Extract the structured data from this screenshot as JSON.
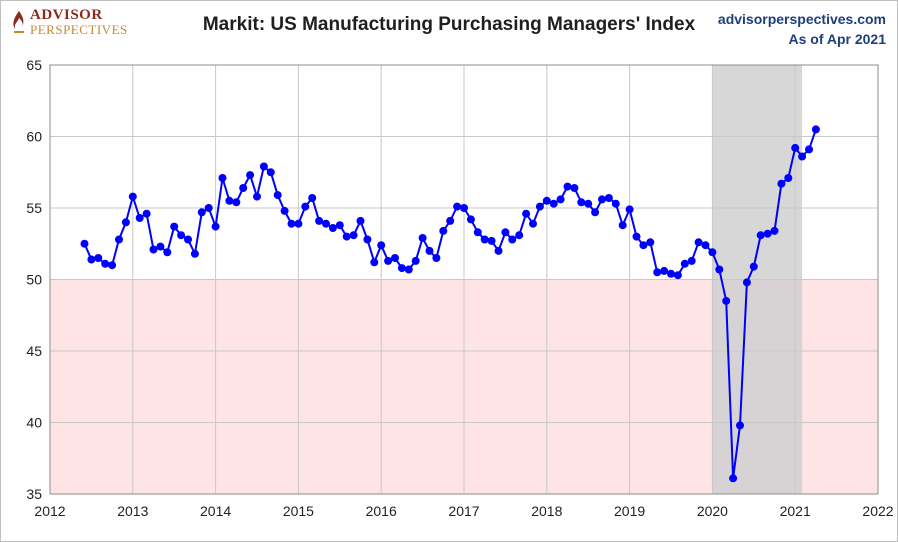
{
  "header": {
    "logo_top": "ADVISOR",
    "logo_bottom": "PERSPECTIVES",
    "title": "Markit: US Manufacturing Purchasing Managers' Index",
    "source_url": "advisorperspectives.com",
    "as_of": "As of Apr 2021"
  },
  "colors": {
    "series": "#0000ff",
    "recession_band": "#d0d0d0",
    "contraction_zone": "#ffe4e6",
    "grid": "#c8c8c8"
  },
  "chart_data": {
    "type": "line",
    "title": "Markit: US Manufacturing Purchasing Managers' Index",
    "xlabel": "",
    "ylabel": "",
    "xlim": [
      2012,
      2022
    ],
    "ylim": [
      35,
      65
    ],
    "x_ticks": [
      "2012",
      "2013",
      "2014",
      "2015",
      "2016",
      "2017",
      "2018",
      "2019",
      "2020",
      "2021",
      "2022"
    ],
    "y_ticks": [
      "35",
      "40",
      "45",
      "50",
      "55",
      "60",
      "65"
    ],
    "grid": true,
    "legend": "none",
    "contraction_zone": [
      35,
      50
    ],
    "recession_band": [
      "2020-01",
      "2021-02"
    ],
    "series": [
      {
        "name": "",
        "x": [
          "2012-06",
          "2012-07",
          "2012-08",
          "2012-09",
          "2012-10",
          "2012-11",
          "2012-12",
          "2013-01",
          "2013-02",
          "2013-03",
          "2013-04",
          "2013-05",
          "2013-06",
          "2013-07",
          "2013-08",
          "2013-09",
          "2013-10",
          "2013-11",
          "2013-12",
          "2014-01",
          "2014-02",
          "2014-03",
          "2014-04",
          "2014-05",
          "2014-06",
          "2014-07",
          "2014-08",
          "2014-09",
          "2014-10",
          "2014-11",
          "2014-12",
          "2015-01",
          "2015-02",
          "2015-03",
          "2015-04",
          "2015-05",
          "2015-06",
          "2015-07",
          "2015-08",
          "2015-09",
          "2015-10",
          "2015-11",
          "2015-12",
          "2016-01",
          "2016-02",
          "2016-03",
          "2016-04",
          "2016-05",
          "2016-06",
          "2016-07",
          "2016-08",
          "2016-09",
          "2016-10",
          "2016-11",
          "2016-12",
          "2017-01",
          "2017-02",
          "2017-03",
          "2017-04",
          "2017-05",
          "2017-06",
          "2017-07",
          "2017-08",
          "2017-09",
          "2017-10",
          "2017-11",
          "2017-12",
          "2018-01",
          "2018-02",
          "2018-03",
          "2018-04",
          "2018-05",
          "2018-06",
          "2018-07",
          "2018-08",
          "2018-09",
          "2018-10",
          "2018-11",
          "2018-12",
          "2019-01",
          "2019-02",
          "2019-03",
          "2019-04",
          "2019-05",
          "2019-06",
          "2019-07",
          "2019-08",
          "2019-09",
          "2019-10",
          "2019-11",
          "2019-12",
          "2020-01",
          "2020-02",
          "2020-03",
          "2020-04",
          "2020-05",
          "2020-06",
          "2020-07",
          "2020-08",
          "2020-09",
          "2020-10",
          "2020-11",
          "2020-12",
          "2021-01",
          "2021-02",
          "2021-03",
          "2021-04"
        ],
        "y": [
          52.5,
          51.4,
          51.5,
          51.1,
          51.0,
          52.8,
          54.0,
          55.8,
          54.3,
          54.6,
          52.1,
          52.3,
          51.9,
          53.7,
          53.1,
          52.8,
          51.8,
          54.7,
          55.0,
          53.7,
          57.1,
          55.5,
          55.4,
          56.4,
          57.3,
          55.8,
          57.9,
          57.5,
          55.9,
          54.8,
          53.9,
          53.9,
          55.1,
          55.7,
          54.1,
          53.9,
          53.6,
          53.8,
          53.0,
          53.1,
          54.1,
          52.8,
          51.2,
          52.4,
          51.3,
          51.5,
          50.8,
          50.7,
          51.3,
          52.9,
          52.0,
          51.5,
          53.4,
          54.1,
          55.1,
          55.0,
          54.2,
          53.3,
          52.8,
          52.7,
          52.0,
          53.3,
          52.8,
          53.1,
          54.6,
          53.9,
          55.1,
          55.5,
          55.3,
          55.6,
          56.5,
          56.4,
          55.4,
          55.3,
          54.7,
          55.6,
          55.7,
          55.3,
          53.8,
          54.9,
          53.0,
          52.4,
          52.6,
          50.5,
          50.6,
          50.4,
          50.3,
          51.1,
          51.3,
          52.6,
          52.4,
          51.9,
          50.7,
          48.5,
          36.1,
          39.8,
          49.8,
          50.9,
          53.1,
          53.2,
          53.4,
          56.7,
          57.1,
          59.2,
          58.6,
          59.1,
          60.5
        ]
      }
    ]
  }
}
